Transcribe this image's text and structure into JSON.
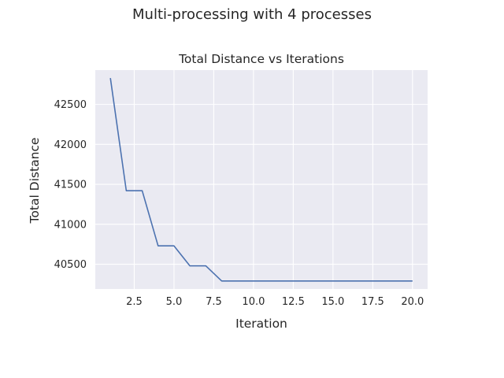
{
  "figure": {
    "suptitle": "Multi-processing with 4 processes"
  },
  "chart_data": {
    "type": "line",
    "title": "Total Distance vs Iterations",
    "xlabel": "Iteration",
    "ylabel": "Total Distance",
    "x": [
      1,
      2,
      3,
      4,
      5,
      6,
      7,
      8,
      9,
      10,
      11,
      12,
      13,
      14,
      15,
      16,
      17,
      18,
      19,
      20
    ],
    "series": [
      {
        "values": [
          42830,
          41420,
          41420,
          40730,
          40730,
          40480,
          40480,
          40290,
          40290,
          40290,
          40290,
          40290,
          40290,
          40290,
          40290,
          40290,
          40290,
          40290,
          40290,
          40290
        ],
        "color": "#4c72b0"
      }
    ],
    "xlim": [
      0.05,
      20.95
    ],
    "ylim": [
      40190,
      42930
    ],
    "xticks": [
      "2.5",
      "5.0",
      "7.5",
      "10.0",
      "12.5",
      "15.0",
      "17.5",
      "20.0"
    ],
    "xtick_values": [
      2.5,
      5.0,
      7.5,
      10.0,
      12.5,
      15.0,
      17.5,
      20.0
    ],
    "yticks": [
      "40500",
      "41000",
      "41500",
      "42000",
      "42500"
    ],
    "ytick_values": [
      40500,
      41000,
      41500,
      42000,
      42500
    ],
    "grid": true,
    "background": "#eaeaf2"
  }
}
